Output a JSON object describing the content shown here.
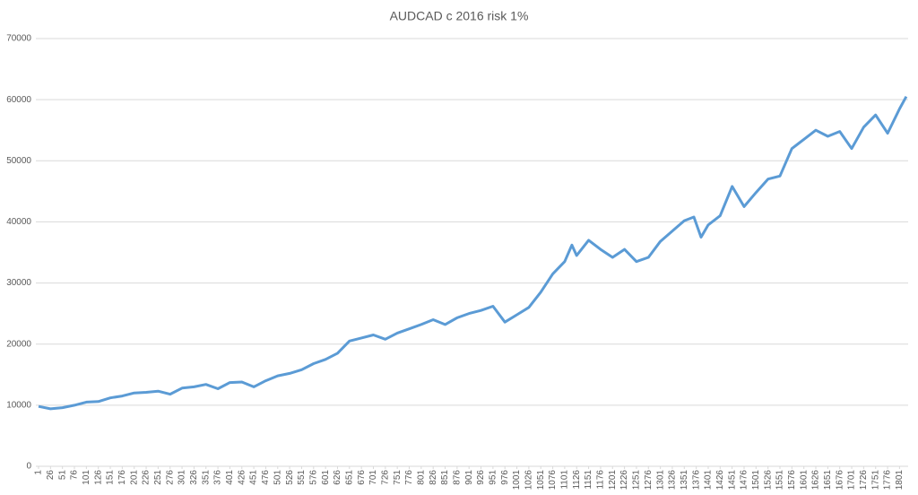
{
  "chart_data": {
    "type": "line",
    "title": "AUDCAD c 2016 risk 1%",
    "series": [
      {
        "color": "#5b9bd5",
        "x": [
          1,
          26,
          51,
          76,
          101,
          126,
          151,
          176,
          201,
          226,
          251,
          276,
          301,
          326,
          351,
          376,
          401,
          426,
          451,
          476,
          501,
          526,
          551,
          576,
          601,
          626,
          651,
          676,
          701,
          726,
          751,
          776,
          801,
          826,
          851,
          876,
          901,
          926,
          951,
          976,
          1001,
          1026,
          1051,
          1076,
          1101,
          1116,
          1126,
          1151,
          1176,
          1201,
          1226,
          1251,
          1276,
          1301,
          1326,
          1351,
          1371,
          1386,
          1401,
          1426,
          1451,
          1476,
          1501,
          1526,
          1551,
          1576,
          1601,
          1626,
          1651,
          1676,
          1701,
          1726,
          1751,
          1776,
          1801,
          1815
        ],
        "values": [
          9800,
          9400,
          9600,
          10000,
          10500,
          10600,
          11200,
          11500,
          12000,
          12100,
          12300,
          11800,
          12800,
          13000,
          13400,
          12700,
          13700,
          13800,
          13000,
          14000,
          14800,
          15200,
          15800,
          16800,
          17500,
          18500,
          20500,
          21000,
          21500,
          20800,
          21800,
          22500,
          23200,
          24000,
          23200,
          24300,
          25000,
          25500,
          26200,
          23600,
          24800,
          26000,
          28500,
          31500,
          33500,
          36200,
          34500,
          37000,
          35500,
          34200,
          35500,
          33500,
          34200,
          36800,
          38500,
          40200,
          40800,
          37500,
          39500,
          41000,
          45800,
          42500,
          44800,
          47000,
          47500,
          52000,
          53500,
          55000,
          54000,
          54800,
          52000,
          55500,
          57500,
          54500,
          58500,
          60500
        ]
      }
    ],
    "xlim": [
      1,
      1819
    ],
    "xticks": [
      1,
      26,
      51,
      76,
      101,
      126,
      151,
      176,
      201,
      226,
      251,
      276,
      301,
      326,
      351,
      376,
      401,
      426,
      451,
      476,
      501,
      526,
      551,
      576,
      601,
      626,
      651,
      676,
      701,
      726,
      751,
      776,
      801,
      826,
      851,
      876,
      901,
      926,
      951,
      976,
      1001,
      1026,
      1051,
      1076,
      1101,
      1126,
      1151,
      1176,
      1201,
      1226,
      1251,
      1276,
      1301,
      1326,
      1351,
      1376,
      1401,
      1426,
      1451,
      1476,
      1501,
      1526,
      1551,
      1576,
      1601,
      1626,
      1651,
      1676,
      1701,
      1726,
      1751,
      1776,
      1801
    ],
    "ylim": [
      0,
      70000
    ],
    "yticks": [
      0,
      10000,
      20000,
      30000,
      40000,
      50000,
      60000,
      70000
    ],
    "grid": true
  }
}
